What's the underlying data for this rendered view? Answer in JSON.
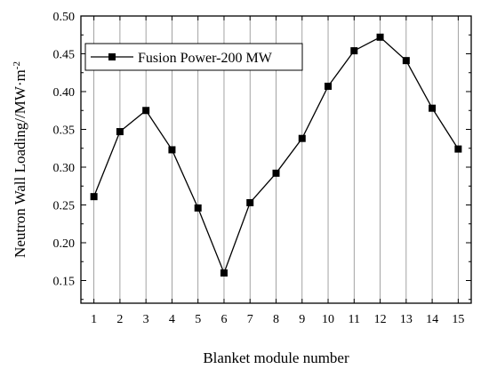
{
  "chart_data": {
    "type": "line",
    "title": "",
    "xlabel": "Blanket module number",
    "ylabel": "Neutron Wall Loading//MW·m",
    "ylabel_superscript": "-2",
    "x": [
      1,
      2,
      3,
      4,
      5,
      6,
      7,
      8,
      9,
      10,
      11,
      12,
      13,
      14,
      15
    ],
    "xlim": [
      0.5,
      15.5
    ],
    "ylim": [
      0.12,
      0.5
    ],
    "xticks": [
      "1",
      "2",
      "3",
      "4",
      "5",
      "6",
      "7",
      "8",
      "9",
      "10",
      "11",
      "12",
      "13",
      "14",
      "15"
    ],
    "yticks": [
      "0.15",
      "0.20",
      "0.25",
      "0.30",
      "0.35",
      "0.40",
      "0.45",
      "0.50"
    ],
    "grid": "vertical",
    "legend_position": "top-left",
    "series": [
      {
        "name": "Fusion Power-200 MW",
        "marker": "square",
        "color": "#000000",
        "values": [
          0.261,
          0.347,
          0.375,
          0.323,
          0.246,
          0.16,
          0.253,
          0.292,
          0.338,
          0.407,
          0.454,
          0.472,
          0.441,
          0.378,
          0.324
        ]
      }
    ]
  }
}
